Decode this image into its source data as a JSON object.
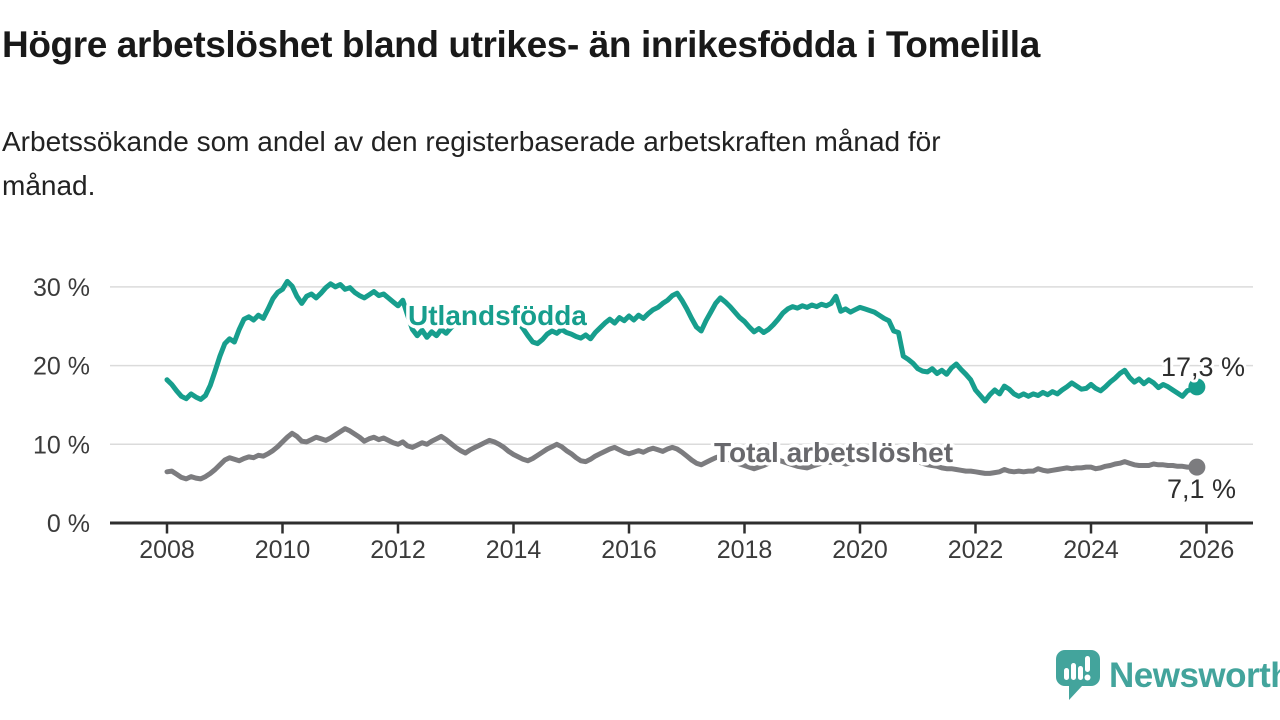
{
  "header": {
    "title": "Högre arbetslöshet bland utrikes- än inrikesfödda i Tomelilla",
    "subtitle": "Arbetssökande som andel av den registerbaserade arbetskraften månad för månad.",
    "subtitle_lines": [
      "Arbetssökande som andel av den registerbaserade arbetskraften månad för",
      "månad."
    ]
  },
  "footer": {
    "brand": "Newsworthy",
    "logo_icon": "speech-bubble-bar-chart"
  },
  "colors": {
    "accent_teal": "#179E8D",
    "series_gray": "#7C7C7F",
    "gray_label": "#68686C",
    "value_label": "#2E2E2E",
    "axis_text": "#3B3B3B",
    "gridline": "#DBDBDB",
    "axis_line": "#2F2F2F",
    "logo_teal": "#43A49C"
  },
  "chart_data": {
    "type": "line",
    "title": "Högre arbetslöshet bland utrikes- än inrikesfödda i Tomelilla",
    "xlabel": "",
    "ylabel": "",
    "unit": "%",
    "grid": "horizontal",
    "legend_position": "inline-labels",
    "ylim": [
      0,
      32
    ],
    "xlim": [
      2007.0,
      2026.8
    ],
    "x_start": 2008.0,
    "points_per_year": 12,
    "x_ticks": [
      {
        "value": 2008,
        "label": "2008"
      },
      {
        "value": 2010,
        "label": "2010"
      },
      {
        "value": 2012,
        "label": "2012"
      },
      {
        "value": 2014,
        "label": "2014"
      },
      {
        "value": 2016,
        "label": "2016"
      },
      {
        "value": 2018,
        "label": "2018"
      },
      {
        "value": 2020,
        "label": "2020"
      },
      {
        "value": 2022,
        "label": "2022"
      },
      {
        "value": 2024,
        "label": "2024"
      },
      {
        "value": 2026,
        "label": "2026"
      }
    ],
    "y_ticks": [
      {
        "value": 0,
        "label": "0 %"
      },
      {
        "value": 10,
        "label": "10 %"
      },
      {
        "value": 20,
        "label": "20 %"
      },
      {
        "value": 30,
        "label": "30 %"
      }
    ],
    "series": [
      {
        "name": "Utlandsfödda",
        "color": "#179E8D",
        "label_color": "#179E8D",
        "end_value": 17.3,
        "end_label": "17,3 %",
        "values": [
          18.2,
          17.6,
          16.8,
          16.1,
          15.8,
          16.4,
          16.0,
          15.7,
          16.2,
          17.5,
          19.3,
          21.2,
          22.8,
          23.4,
          23.0,
          24.6,
          25.9,
          26.2,
          25.8,
          26.4,
          26.0,
          27.2,
          28.5,
          29.3,
          29.7,
          30.7,
          30.1,
          28.8,
          27.9,
          28.8,
          29.1,
          28.6,
          29.2,
          29.9,
          30.4,
          30.0,
          30.3,
          29.7,
          29.9,
          29.3,
          28.9,
          28.6,
          29.0,
          29.4,
          28.9,
          29.1,
          28.6,
          28.1,
          27.6,
          28.3,
          26.4,
          24.6,
          23.8,
          24.5,
          23.6,
          24.3,
          23.8,
          24.6,
          24.1,
          24.8,
          25.4,
          26.0,
          25.6,
          26.2,
          25.8,
          26.3,
          25.9,
          26.4,
          26.0,
          26.5,
          26.1,
          25.7,
          26.2,
          25.5,
          24.7,
          23.8,
          23.0,
          22.8,
          23.3,
          24.0,
          24.4,
          24.1,
          24.6,
          24.2,
          24.0,
          23.7,
          23.5,
          23.9,
          23.4,
          24.2,
          24.8,
          25.4,
          25.9,
          25.4,
          26.1,
          25.7,
          26.3,
          25.8,
          26.4,
          26.0,
          26.6,
          27.1,
          27.4,
          27.9,
          28.3,
          28.9,
          29.2,
          28.3,
          27.2,
          26.0,
          24.9,
          24.4,
          25.7,
          26.8,
          27.9,
          28.6,
          28.1,
          27.5,
          26.8,
          26.1,
          25.6,
          24.9,
          24.3,
          24.7,
          24.2,
          24.6,
          25.2,
          25.9,
          26.7,
          27.2,
          27.5,
          27.3,
          27.6,
          27.4,
          27.7,
          27.5,
          27.8,
          27.6,
          27.9,
          28.8,
          26.9,
          27.2,
          26.8,
          27.1,
          27.4,
          27.2,
          27.0,
          26.8,
          26.4,
          26.0,
          25.7,
          24.4,
          24.2,
          21.2,
          20.8,
          20.3,
          19.6,
          19.3,
          19.2,
          19.6,
          19.0,
          19.4,
          18.9,
          19.7,
          20.2,
          19.5,
          18.9,
          18.2,
          16.9,
          16.2,
          15.5,
          16.3,
          16.9,
          16.4,
          17.4,
          17.0,
          16.4,
          16.1,
          16.4,
          16.1,
          16.4,
          16.2,
          16.6,
          16.3,
          16.7,
          16.4,
          16.9,
          17.3,
          17.8,
          17.4,
          17.0,
          17.1,
          17.6,
          17.1,
          16.8,
          17.3,
          17.9,
          18.4,
          19.0,
          19.4,
          18.5,
          17.9,
          18.3,
          17.7,
          18.2,
          17.8,
          17.2,
          17.6,
          17.3,
          16.9,
          16.5,
          16.1,
          16.8,
          17.0,
          17.3
        ]
      },
      {
        "name": "Total arbetslöshet",
        "color": "#7C7C7F",
        "label_color": "#68686C",
        "end_value": 7.1,
        "end_label": "7,1 %",
        "values": [
          6.5,
          6.6,
          6.2,
          5.8,
          5.6,
          5.9,
          5.7,
          5.6,
          5.9,
          6.3,
          6.8,
          7.4,
          8.0,
          8.3,
          8.1,
          7.9,
          8.2,
          8.4,
          8.3,
          8.6,
          8.5,
          8.8,
          9.2,
          9.7,
          10.3,
          10.9,
          11.4,
          11.0,
          10.4,
          10.3,
          10.6,
          10.9,
          10.7,
          10.5,
          10.8,
          11.2,
          11.6,
          12.0,
          11.7,
          11.3,
          10.9,
          10.4,
          10.7,
          10.9,
          10.6,
          10.8,
          10.5,
          10.2,
          10.0,
          10.3,
          9.8,
          9.6,
          9.9,
          10.2,
          10.0,
          10.4,
          10.7,
          11.0,
          10.6,
          10.1,
          9.6,
          9.2,
          8.9,
          9.3,
          9.6,
          9.9,
          10.2,
          10.5,
          10.3,
          10.0,
          9.6,
          9.1,
          8.7,
          8.4,
          8.1,
          7.9,
          8.2,
          8.6,
          9.0,
          9.4,
          9.7,
          10.0,
          9.7,
          9.2,
          8.8,
          8.3,
          7.9,
          7.8,
          8.1,
          8.5,
          8.8,
          9.1,
          9.4,
          9.6,
          9.3,
          9.0,
          8.8,
          9.0,
          9.2,
          9.0,
          9.3,
          9.5,
          9.3,
          9.1,
          9.4,
          9.6,
          9.4,
          9.0,
          8.5,
          8.0,
          7.6,
          7.4,
          7.7,
          8.0,
          8.3,
          8.5,
          8.3,
          8.0,
          7.8,
          7.5,
          7.3,
          7.1,
          6.9,
          7.1,
          7.3,
          7.6,
          7.8,
          8.0,
          7.8,
          7.6,
          7.4,
          7.2,
          7.1,
          7.0,
          7.2,
          7.4,
          7.6,
          7.8,
          7.7,
          7.9,
          7.7,
          7.5,
          7.6,
          7.7,
          7.9,
          8.1,
          8.6,
          9.0,
          9.2,
          9.0,
          8.8,
          8.6,
          8.4,
          8.2,
          8.0,
          7.9,
          7.8,
          7.6,
          7.4,
          7.3,
          7.2,
          7.0,
          6.9,
          6.9,
          6.8,
          6.7,
          6.6,
          6.6,
          6.5,
          6.4,
          6.3,
          6.3,
          6.4,
          6.5,
          6.8,
          6.6,
          6.5,
          6.6,
          6.5,
          6.6,
          6.6,
          6.9,
          6.7,
          6.6,
          6.7,
          6.8,
          6.9,
          7.0,
          6.9,
          7.0,
          7.0,
          7.1,
          7.1,
          6.9,
          7.0,
          7.2,
          7.3,
          7.5,
          7.6,
          7.8,
          7.6,
          7.4,
          7.3,
          7.3,
          7.3,
          7.5,
          7.4,
          7.4,
          7.3,
          7.3,
          7.2,
          7.2,
          7.1,
          7.1,
          7.1
        ]
      }
    ]
  }
}
